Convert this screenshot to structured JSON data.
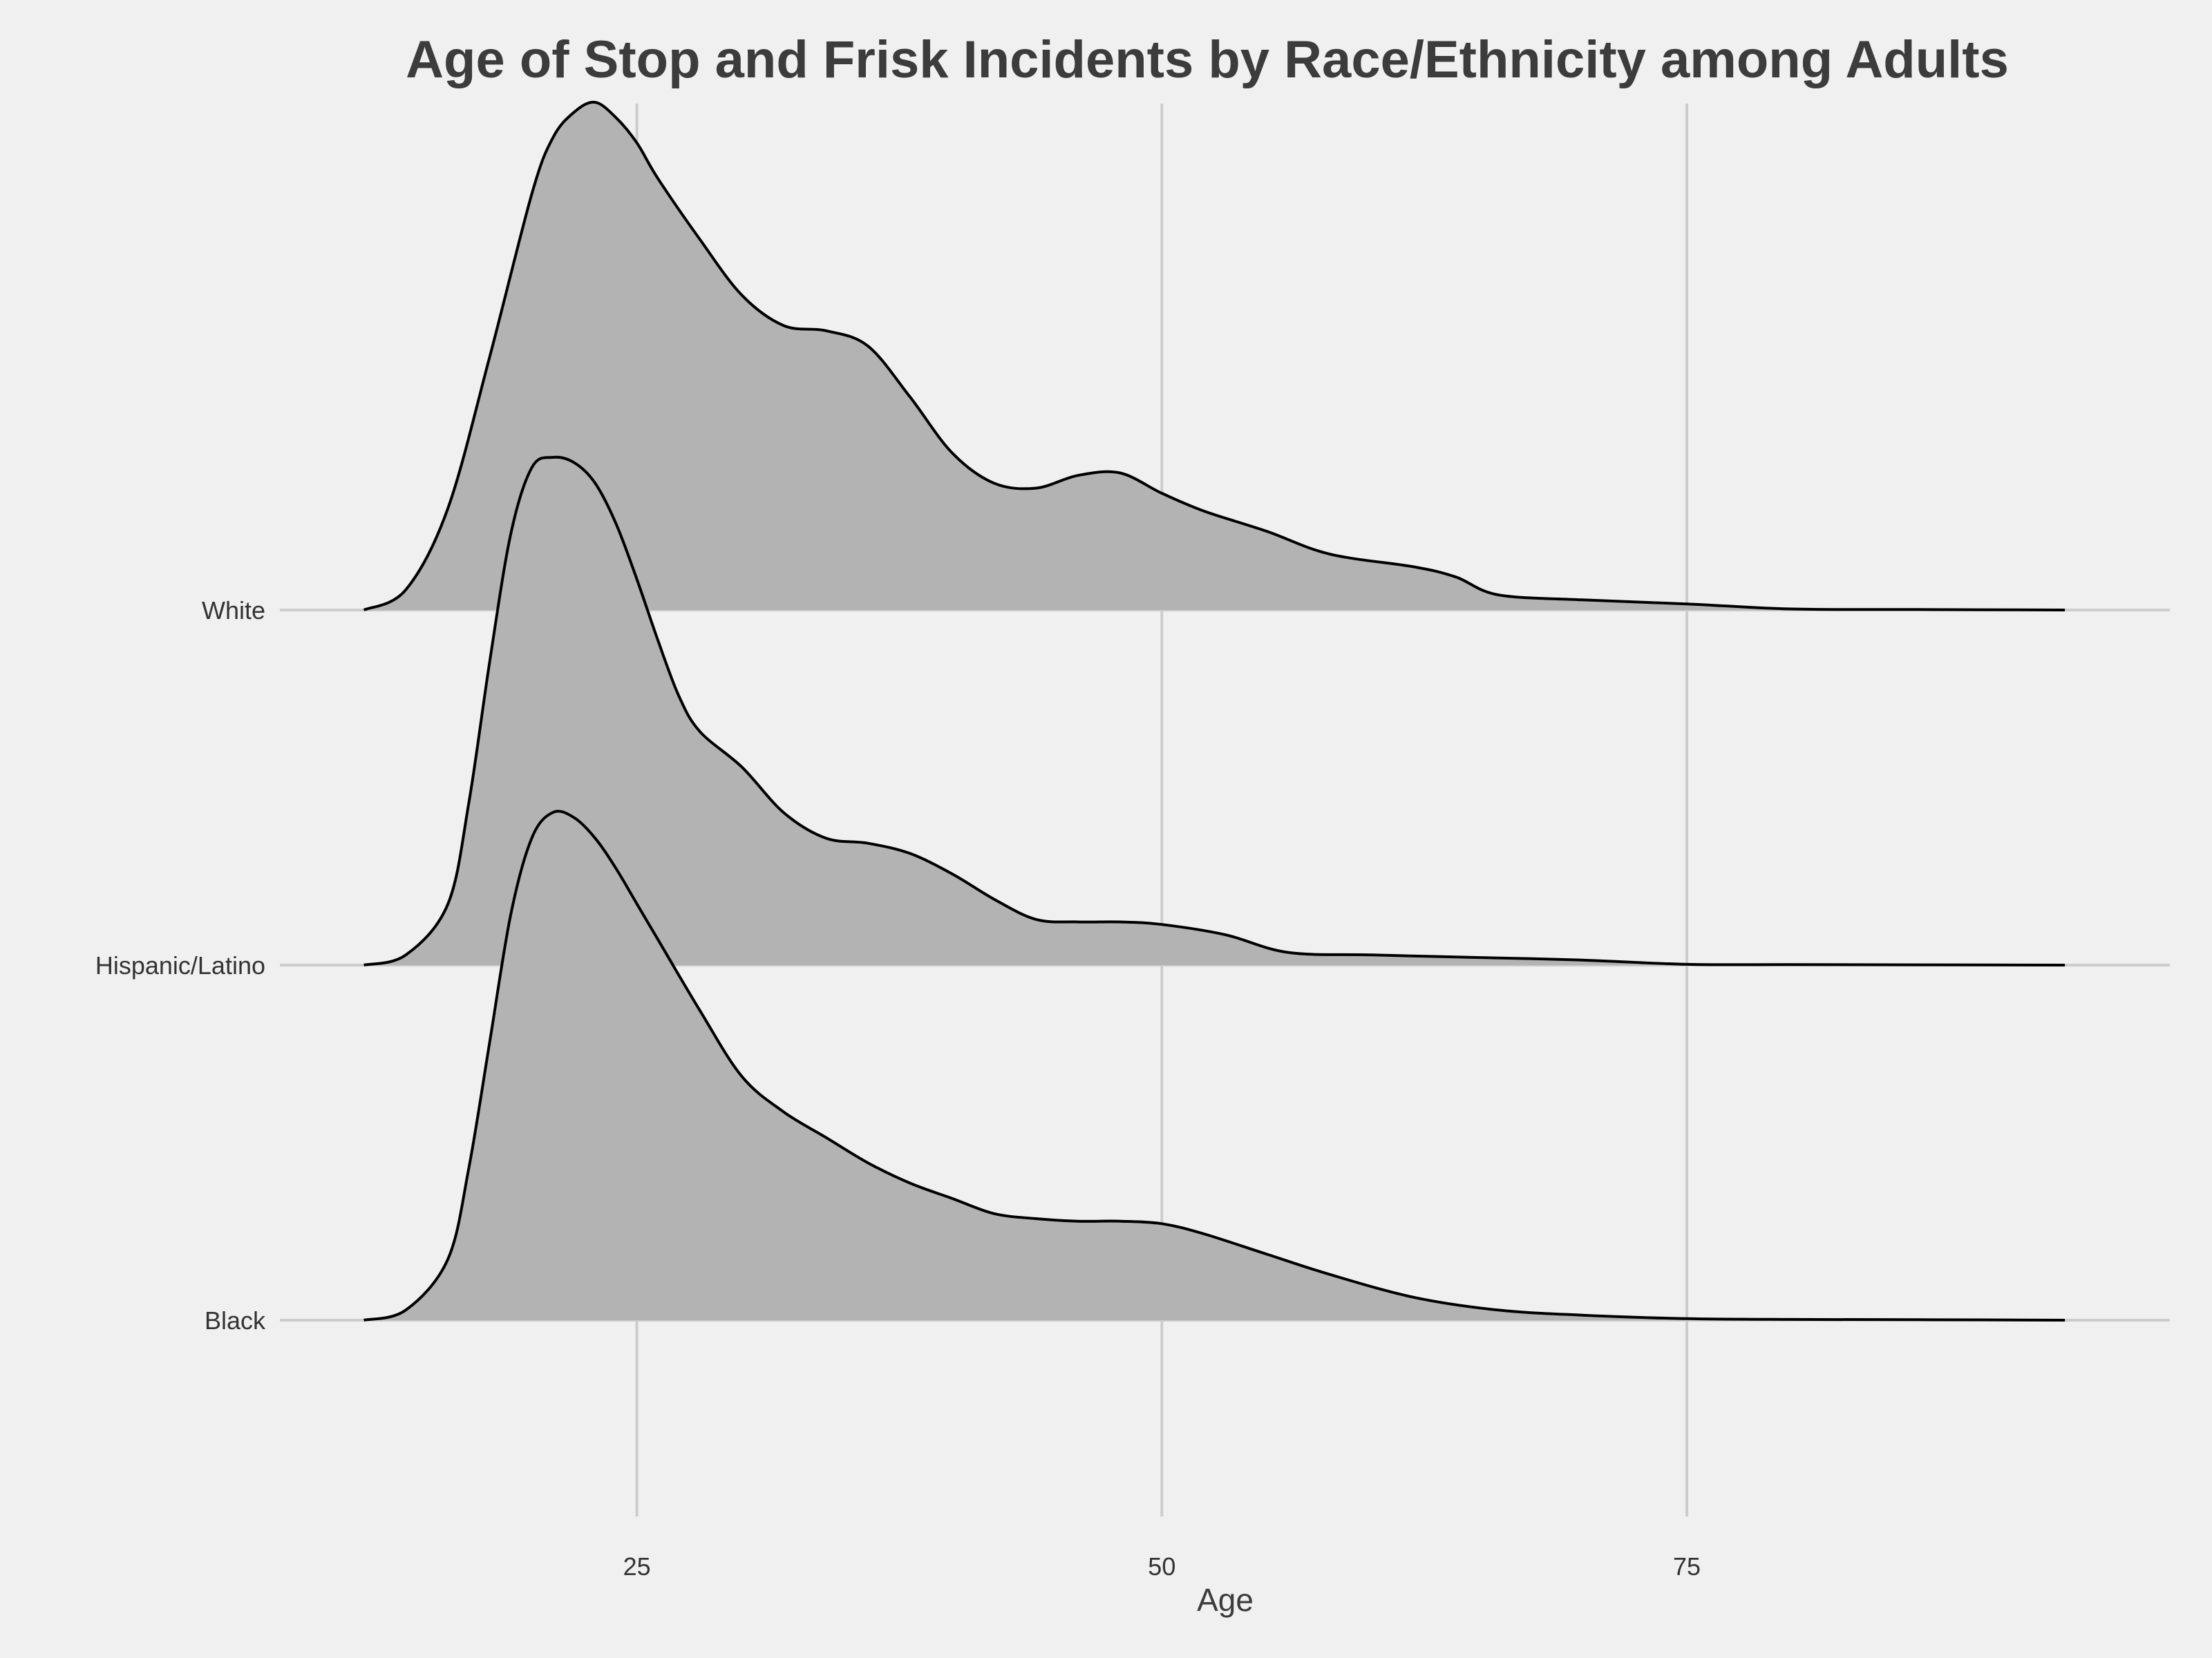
{
  "chart_data": {
    "type": "ridgeline",
    "title": "Age of Stop and Frisk Incidents by Race/Ethnicity among Adults",
    "xlabel": "Age",
    "ylabel": "",
    "xlim": [
      8,
      98
    ],
    "x_ticks": [
      25,
      50,
      75
    ],
    "grid": true,
    "fill_color": "#b3b3b3",
    "line_color": "#000000",
    "background_color": "#f0f0f0",
    "grid_color": "#cccccc",
    "categories": [
      "Black",
      "Hispanic/Latino",
      "White"
    ],
    "series": [
      {
        "name": "Black",
        "x": [
          12,
          14,
          16,
          17,
          18,
          19,
          20,
          21,
          22,
          23,
          24,
          25,
          26,
          28,
          30,
          32,
          34,
          36,
          38,
          40,
          42,
          44,
          46,
          48,
          50,
          52,
          55,
          58,
          62,
          66,
          70,
          75,
          80,
          86,
          93
        ],
        "density": [
          0.0,
          0.02,
          0.12,
          0.3,
          0.55,
          0.8,
          0.95,
          1.0,
          0.99,
          0.95,
          0.89,
          0.82,
          0.75,
          0.61,
          0.48,
          0.41,
          0.36,
          0.31,
          0.27,
          0.24,
          0.21,
          0.2,
          0.195,
          0.195,
          0.19,
          0.17,
          0.13,
          0.09,
          0.045,
          0.02,
          0.01,
          0.003,
          0.0015,
          0.001,
          0.0
        ]
      },
      {
        "name": "Hispanic/Latino",
        "x": [
          12,
          14,
          16,
          17,
          18,
          19,
          20,
          21,
          22,
          23,
          24,
          25,
          26,
          27,
          28,
          30,
          32,
          34,
          36,
          38,
          40,
          42,
          44,
          46,
          48,
          50,
          53,
          56,
          60,
          65,
          70,
          75,
          80,
          86,
          93
        ],
        "density": [
          0.0,
          0.02,
          0.12,
          0.32,
          0.6,
          0.85,
          0.98,
          1.0,
          0.99,
          0.95,
          0.87,
          0.76,
          0.64,
          0.53,
          0.46,
          0.39,
          0.3,
          0.25,
          0.24,
          0.22,
          0.18,
          0.13,
          0.09,
          0.085,
          0.085,
          0.08,
          0.06,
          0.025,
          0.02,
          0.015,
          0.01,
          0.0015,
          0.001,
          0.0005,
          0.0
        ]
      },
      {
        "name": "White",
        "x": [
          12,
          14,
          16,
          18,
          20,
          21,
          22,
          23,
          24,
          25,
          26,
          28,
          30,
          32,
          34,
          36,
          38,
          40,
          42,
          44,
          46,
          48,
          50,
          52,
          55,
          58,
          62,
          64,
          66,
          70,
          75,
          80,
          86,
          93
        ],
        "density": [
          0.0,
          0.04,
          0.2,
          0.5,
          0.82,
          0.93,
          0.98,
          1.0,
          0.97,
          0.92,
          0.85,
          0.73,
          0.62,
          0.56,
          0.55,
          0.52,
          0.42,
          0.31,
          0.25,
          0.24,
          0.265,
          0.27,
          0.23,
          0.195,
          0.155,
          0.11,
          0.085,
          0.065,
          0.03,
          0.02,
          0.012,
          0.002,
          0.001,
          0.0
        ]
      }
    ]
  }
}
